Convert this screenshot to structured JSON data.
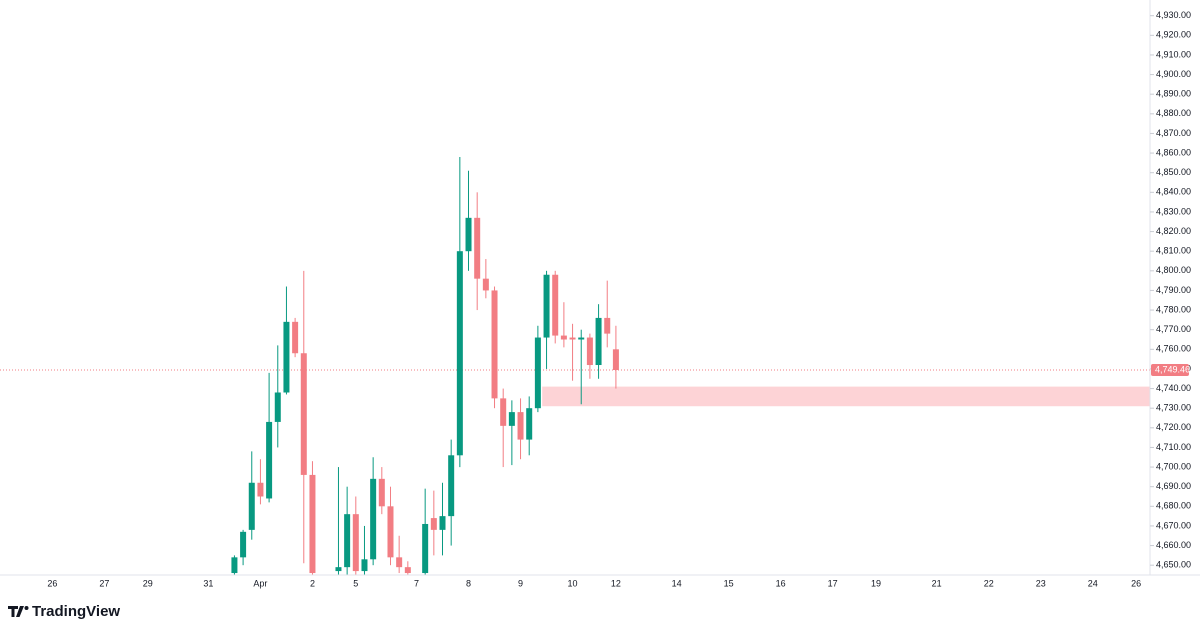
{
  "brand": "TradingView",
  "chart_data": {
    "type": "candlestick",
    "categories": [
      null,
      null,
      null,
      null,
      null,
      null,
      "26",
      null,
      null,
      null,
      null,
      null,
      "27",
      null,
      null,
      null,
      null,
      "29",
      null,
      null,
      null,
      null,
      null,
      null,
      "31",
      null,
      null,
      null,
      null,
      null,
      "Apr",
      null,
      null,
      null,
      null,
      null,
      "2",
      null,
      null,
      null,
      null,
      "5",
      null,
      null,
      null,
      null,
      null,
      null,
      "7",
      null,
      null,
      null,
      null,
      null,
      "8",
      null,
      null,
      null,
      null,
      null,
      "9",
      null,
      null,
      null,
      null,
      null,
      "10",
      null,
      null,
      null,
      null,
      "12",
      null,
      null,
      null,
      null,
      null,
      null,
      "14",
      null,
      null,
      null,
      null,
      null,
      "15",
      null,
      null,
      null,
      null,
      null,
      "16",
      null,
      null,
      null,
      null,
      null,
      "17",
      null,
      null,
      null,
      null,
      "19",
      null,
      null,
      null,
      null,
      null,
      null,
      "21",
      null,
      null,
      null,
      null,
      null,
      "22",
      null,
      null,
      null,
      null,
      null,
      "23",
      null,
      null,
      null,
      null,
      null,
      "24",
      null,
      null,
      null,
      null,
      "26"
    ],
    "open": [
      null,
      null,
      null,
      null,
      null,
      null,
      null,
      null,
      null,
      null,
      null,
      null,
      null,
      null,
      null,
      null,
      null,
      null,
      null,
      null,
      null,
      null,
      null,
      null,
      null,
      null,
      null,
      4646,
      4654,
      4668,
      4692,
      4684,
      4723,
      4738,
      4774,
      4758,
      4696,
      null,
      null,
      4647,
      4649,
      4676,
      4647,
      4653,
      4694,
      4680,
      4654,
      4649,
      null,
      4646,
      4674,
      4668,
      4675,
      4706,
      4810,
      4827,
      4796,
      4790,
      4735,
      4721,
      4728,
      4714,
      4730,
      4766,
      4798,
      4767,
      4766,
      4765,
      4766,
      4752,
      4776,
      4760,
      null,
      null,
      null,
      null,
      null,
      null,
      null,
      null,
      null,
      null,
      null,
      null,
      null,
      null,
      null,
      null,
      null,
      null,
      null,
      null,
      null,
      null,
      null,
      null,
      null,
      null,
      null,
      null,
      null,
      null,
      null,
      null,
      null,
      null,
      null,
      null,
      null,
      null,
      null,
      null,
      null,
      null,
      null,
      null,
      null,
      null,
      null,
      null,
      null,
      null,
      null,
      null,
      null,
      null,
      null,
      null,
      null,
      null,
      null,
      null
    ],
    "high": [
      null,
      null,
      null,
      null,
      null,
      null,
      null,
      null,
      null,
      null,
      null,
      null,
      null,
      null,
      null,
      null,
      null,
      null,
      null,
      null,
      null,
      null,
      null,
      null,
      null,
      null,
      null,
      4655,
      4668,
      4708,
      4704,
      4748,
      4762,
      4792,
      4776,
      4800,
      4703,
      null,
      null,
      4700,
      4690,
      4685,
      4670,
      4705,
      4700,
      4690,
      4665,
      4652,
      null,
      4689,
      4688,
      4692,
      4714,
      4858,
      4851,
      4840,
      4806,
      4792,
      4740,
      4734,
      4735,
      4736,
      4772,
      4800,
      4800,
      4784,
      4773,
      4770,
      4768,
      4783,
      4795,
      4772,
      null,
      null,
      null,
      null,
      null,
      null,
      null,
      null,
      null,
      null,
      null,
      null,
      null,
      null,
      null,
      null,
      null,
      null,
      null,
      null,
      null,
      null,
      null,
      null,
      null,
      null,
      null,
      null,
      null,
      null,
      null,
      null,
      null,
      null,
      null,
      null,
      null,
      null,
      null,
      null,
      null,
      null,
      null,
      null,
      null,
      null,
      null,
      null,
      null,
      null,
      null,
      null,
      null,
      null,
      null,
      null,
      null,
      null,
      null,
      null
    ],
    "low": [
      null,
      null,
      null,
      null,
      null,
      null,
      null,
      null,
      null,
      null,
      null,
      null,
      null,
      null,
      null,
      null,
      null,
      null,
      null,
      null,
      null,
      null,
      null,
      null,
      null,
      null,
      null,
      4640,
      4650,
      4663,
      4681,
      4682,
      4710,
      4737,
      4756,
      4651,
      4640,
      null,
      null,
      4640,
      4645,
      4645,
      4640,
      4650,
      4676,
      4650,
      4646,
      4640,
      null,
      4640,
      4655,
      4655,
      4660,
      4700,
      4800,
      4780,
      4786,
      4730,
      4700,
      4701,
      4704,
      4706,
      4728,
      4750,
      4763,
      4761,
      4744,
      4732,
      4745,
      4745,
      4761,
      4740,
      null,
      null,
      null,
      null,
      null,
      null,
      null,
      null,
      null,
      null,
      null,
      null,
      null,
      null,
      null,
      null,
      null,
      null,
      null,
      null,
      null,
      null,
      null,
      null,
      null,
      null,
      null,
      null,
      null,
      null,
      null,
      null,
      null,
      null,
      null,
      null,
      null,
      null,
      null,
      null,
      null,
      null,
      null,
      null,
      null,
      null,
      null,
      null,
      null,
      null,
      null,
      null,
      null,
      null,
      null,
      null,
      null,
      null,
      null,
      null
    ],
    "close": [
      null,
      null,
      null,
      null,
      null,
      null,
      null,
      null,
      null,
      null,
      null,
      null,
      null,
      null,
      null,
      null,
      null,
      null,
      null,
      null,
      null,
      null,
      null,
      null,
      null,
      null,
      null,
      4654,
      4667,
      4692,
      4685,
      4723,
      4738,
      4774,
      4758,
      4696,
      4646,
      null,
      null,
      4649,
      4676,
      4647,
      4653,
      4694,
      4680,
      4654,
      4649,
      4646,
      null,
      4671,
      4668,
      4675,
      4706,
      4810,
      4827,
      4796,
      4790,
      4735,
      4721,
      4728,
      4714,
      4730,
      4766,
      4798,
      4767,
      4765,
      4765,
      4766,
      4752,
      4776,
      4768,
      4749.46,
      null,
      null,
      null,
      null,
      null,
      null,
      null,
      null,
      null,
      null,
      null,
      null,
      null,
      null,
      null,
      null,
      null,
      null,
      null,
      null,
      null,
      null,
      null,
      null,
      null,
      null,
      null,
      null,
      null,
      null,
      null,
      null,
      null,
      null,
      null,
      null,
      null,
      null,
      null,
      null,
      null,
      null,
      null,
      null,
      null,
      null,
      null,
      null,
      null,
      null,
      null,
      null,
      null,
      null,
      null,
      null,
      null,
      null,
      null,
      null
    ],
    "up_color": "#089981",
    "down_color": "#f27d83",
    "ylim": [
      4645,
      4938
    ],
    "yticks": [
      {
        "value": 4650,
        "label": "4,650.00"
      },
      {
        "value": 4660,
        "label": "4,660.00"
      },
      {
        "value": 4670,
        "label": "4,670.00"
      },
      {
        "value": 4680,
        "label": "4,680.00"
      },
      {
        "value": 4690,
        "label": "4,690.00"
      },
      {
        "value": 4700,
        "label": "4,700.00"
      },
      {
        "value": 4710,
        "label": "4,710.00"
      },
      {
        "value": 4720,
        "label": "4,720.00"
      },
      {
        "value": 4730,
        "label": "4,730.00"
      },
      {
        "value": 4740,
        "label": "4,740.00"
      },
      {
        "value": 4750,
        "label": "4,750.00"
      },
      {
        "value": 4760,
        "label": "4,760.00"
      },
      {
        "value": 4770,
        "label": "4,770.00"
      },
      {
        "value": 4780,
        "label": "4,780.00"
      },
      {
        "value": 4790,
        "label": "4,790.00"
      },
      {
        "value": 4800,
        "label": "4,800.00"
      },
      {
        "value": 4810,
        "label": "4,810.00"
      },
      {
        "value": 4820,
        "label": "4,820.00"
      },
      {
        "value": 4830,
        "label": "4,830.00"
      },
      {
        "value": 4840,
        "label": "4,840.00"
      },
      {
        "value": 4850,
        "label": "4,850.00"
      },
      {
        "value": 4860,
        "label": "4,860.00"
      },
      {
        "value": 4870,
        "label": "4,870.00"
      },
      {
        "value": 4880,
        "label": "4,880.00"
      },
      {
        "value": 4890,
        "label": "4,890.00"
      },
      {
        "value": 4900,
        "label": "4,900.00"
      },
      {
        "value": 4910,
        "label": "4,910.00"
      },
      {
        "value": 4920,
        "label": "4,920.00"
      },
      {
        "value": 4930,
        "label": "4,930.00"
      }
    ],
    "grid": false,
    "zone": {
      "range": [
        4731,
        4741
      ],
      "color": "#fdd3d6"
    },
    "last_price": {
      "value": 4749.46,
      "label": "4,749.46",
      "color": "#f27d83"
    }
  }
}
